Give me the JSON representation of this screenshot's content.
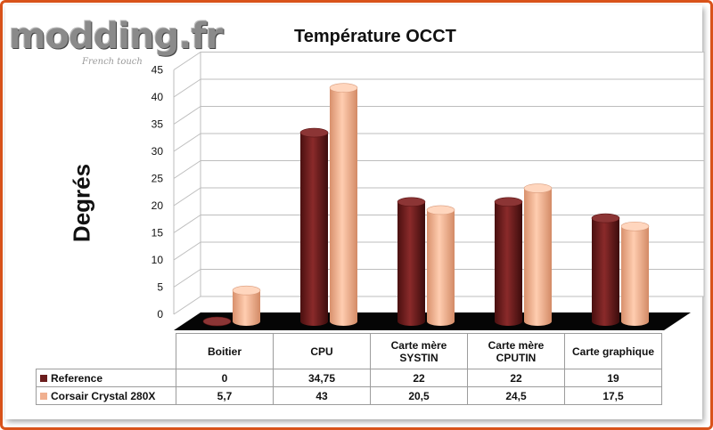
{
  "logo": {
    "brand": "modding.fr",
    "tagline": "French touch"
  },
  "chart_data": {
    "type": "bar",
    "title": "Température OCCT",
    "ylabel": "Degrés",
    "xlabel": "",
    "ylim": [
      0,
      45
    ],
    "yticks": [
      0,
      5,
      10,
      15,
      20,
      25,
      30,
      35,
      40,
      45
    ],
    "categories": [
      "Boitier",
      "CPU",
      "Carte mère SYSTIN",
      "Carte mère CPUTIN",
      "Carte graphique"
    ],
    "series": [
      {
        "name": "Reference",
        "values": [
          0,
          34.75,
          22,
          22,
          19
        ],
        "labels": [
          "0",
          "34,75",
          "22",
          "22",
          "19"
        ],
        "color": "#6b1d1d"
      },
      {
        "name": "Corsair Crystal 280X",
        "values": [
          5.7,
          43,
          20.5,
          24.5,
          17.5
        ],
        "labels": [
          "5,7",
          "43",
          "20,5",
          "24,5",
          "17,5"
        ],
        "color": "#f0b090"
      }
    ],
    "legend": "table-bottom",
    "grid": true
  }
}
